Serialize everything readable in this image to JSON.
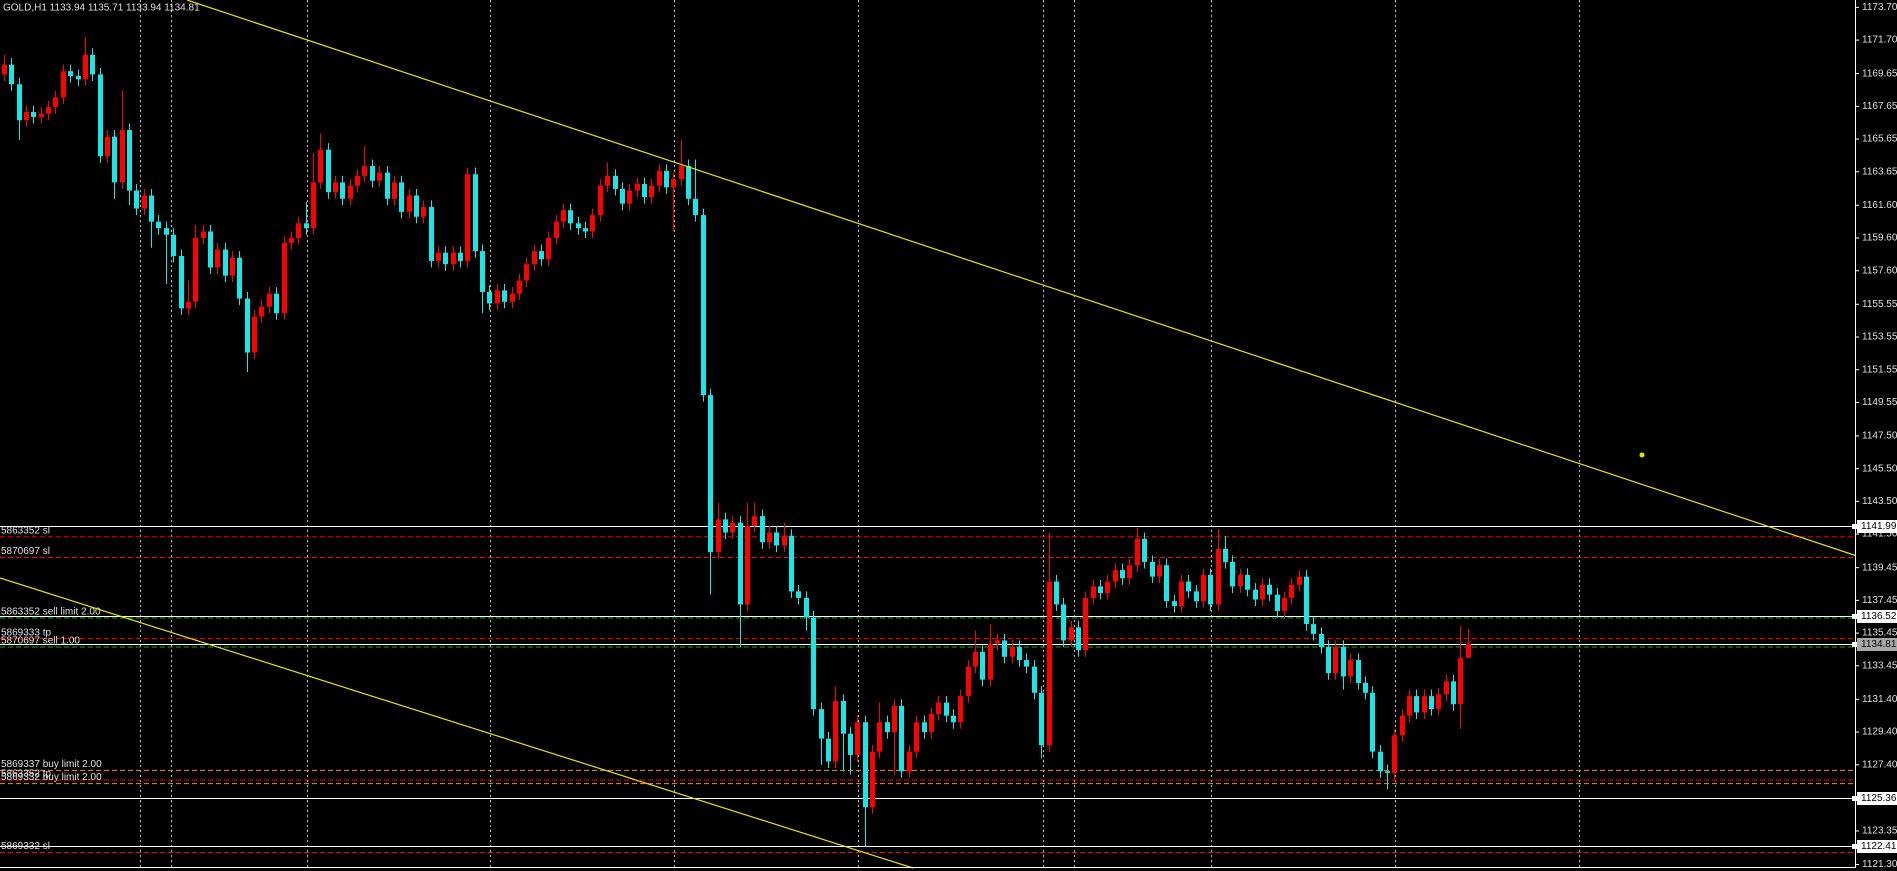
{
  "chart_data": {
    "type": "candlestick",
    "title": "GOLD,H1  1133.94 1135.71 1133.94 1134.81",
    "up_color": "#ff0000",
    "down_color": "#19e6e6",
    "grid": true,
    "ylim": [
      1121.15,
      1174.15
    ],
    "yticks": [
      {
        "value": 1173.7,
        "label": "1173.70"
      },
      {
        "value": 1171.7,
        "label": "1171.70"
      },
      1169.65,
      1167.65,
      1165.65,
      1163.65,
      {
        "value": 1161.6,
        "label": "1161.60"
      },
      {
        "value": 1159.6,
        "label": "1159.60"
      },
      {
        "value": 1157.6,
        "label": "1157.60"
      },
      1155.55,
      1153.55,
      1151.55,
      1149.55,
      {
        "value": 1147.5,
        "label": "1147.50"
      },
      {
        "value": 1145.5,
        "label": "1145.50"
      },
      {
        "value": 1143.5,
        "label": "1143.50"
      },
      {
        "value": 1141.5,
        "label": "1141.50"
      },
      1139.45,
      1137.45,
      1135.45,
      1133.45,
      {
        "value": 1131.4,
        "label": "1131.40"
      },
      {
        "value": 1129.4,
        "label": "1129.40"
      },
      {
        "value": 1127.4,
        "label": "1127.40"
      },
      1125.35,
      1123.35,
      {
        "value": 1121.3,
        "label": "1121.30"
      }
    ],
    "price_lines": [
      1141.99,
      1136.52,
      1134.81,
      1125.36,
      1122.41
    ],
    "orders": [
      {
        "label": "5863352 sl",
        "value": 1141.33,
        "color": "#ff0000"
      },
      {
        "label": "5870697 sl",
        "value": 1140.07,
        "color": "#ff0000"
      },
      {
        "label": "5863352 sell limit 2.00",
        "value": 1136.37,
        "color": "#00b400"
      },
      {
        "label": "5869333 tp",
        "value": 1135.11,
        "color": "#ff0000"
      },
      {
        "label": "5870697 sell 1.00",
        "value": 1134.6,
        "color": "#00b400"
      },
      {
        "label": "5869337 buy limit 2.00",
        "value": 1127.06,
        "color": "#ff8c00"
      },
      {
        "label": "5863352 tp",
        "value": 1126.47,
        "color": "#ff0000"
      },
      {
        "label": "5869332 buy limit 2.00",
        "value": 1126.25,
        "color": "#ff8c00"
      },
      {
        "label": "5869332 sl",
        "value": 1122.04,
        "color": "#ff0000"
      }
    ],
    "open": [
      1169.6,
      1170.2,
      1169.0,
      1166.8,
      1167.3,
      1167.0,
      1167.2,
      1167.6,
      1168.2,
      1169.8,
      1169.5,
      1169.3,
      1170.8,
      1169.6,
      1164.6,
      1165.8,
      1163.0,
      1166.2,
      1162.5,
      1161.4,
      1162.2,
      1160.6,
      1160.2,
      1159.8,
      1158.5,
      1155.3,
      1155.7,
      1159.6,
      1160.0,
      1157.8,
      1158.9,
      1157.3,
      1158.4,
      1155.9,
      1152.6,
      1154.8,
      1155.4,
      1156.2,
      1155.0,
      1159.3,
      1159.6,
      1160.5,
      1160.2,
      1163.0,
      1165.0,
      1162.4,
      1163.0,
      1162.0,
      1162.8,
      1163.4,
      1164.0,
      1163.1,
      1163.6,
      1162.0,
      1163.0,
      1161.2,
      1162.2,
      1160.9,
      1161.5,
      1158.2,
      1158.7,
      1158.0,
      1158.7,
      1158.2,
      1163.5,
      1158.8,
      1156.3,
      1155.6,
      1156.4,
      1155.7,
      1156.2,
      1157.0,
      1158.0,
      1158.8,
      1158.3,
      1159.6,
      1160.6,
      1161.3,
      1160.5,
      1160.2,
      1160.0,
      1161.0,
      1162.8,
      1163.4,
      1162.6,
      1161.7,
      1162.5,
      1162.9,
      1162.1,
      1162.8,
      1163.7,
      1162.7,
      1163.2,
      1164.0,
      1162.0,
      1161.0,
      1150.0,
      1140.4,
      1142.4,
      1141.6,
      1142.2,
      1137.2,
      1142.0,
      1142.6,
      1141.0,
      1141.6,
      1140.8,
      1141.4,
      1138.0,
      1137.6,
      1136.4,
      1130.8,
      1129.0,
      1127.6,
      1131.3,
      1129.3,
      1128.0,
      1130.0,
      1124.8,
      1128.2,
      1130.0,
      1129.4,
      1131.0,
      1127.0,
      1128.2,
      1130.0,
      1129.4,
      1130.5,
      1131.2,
      1130.4,
      1130.0,
      1131.6,
      1133.4,
      1134.3,
      1132.6,
      1134.8,
      1135.0,
      1134.0,
      1134.6,
      1133.8,
      1133.4,
      1131.8,
      1128.6,
      1138.6,
      1137.2,
      1135.0,
      1135.8,
      1134.4,
      1137.6,
      1138.3,
      1137.9,
      1138.6,
      1139.3,
      1138.8,
      1139.6,
      1141.2,
      1139.8,
      1138.9,
      1139.6,
      1137.4,
      1137.1,
      1138.6,
      1138.0,
      1137.4,
      1139.0,
      1137.2,
      1140.6,
      1139.8,
      1138.3,
      1139.0,
      1138.1,
      1137.5,
      1138.4,
      1137.8,
      1136.8,
      1137.6,
      1138.4,
      1138.9,
      1136.0,
      1135.4,
      1134.6,
      1133.0,
      1134.6,
      1132.8,
      1133.8,
      1132.4,
      1131.8,
      1128.2,
      1127.0,
      1126.9,
      1129.2,
      1130.4,
      1131.6,
      1130.6,
      1131.6,
      1130.8,
      1131.7,
      1132.5,
      1131.1,
      1133.94
    ],
    "high": [
      1170.8,
      1170.6,
      1169.4,
      1167.7,
      1167.7,
      1167.6,
      1168.0,
      1168.6,
      1170.2,
      1170.2,
      1169.9,
      1171.9,
      1171.2,
      1170.0,
      1166.2,
      1166.2,
      1168.6,
      1166.6,
      1162.9,
      1162.6,
      1162.6,
      1161.0,
      1160.6,
      1160.2,
      1158.9,
      1157.0,
      1160.4,
      1160.4,
      1160.4,
      1159.3,
      1159.3,
      1158.8,
      1158.8,
      1156.3,
      1155.2,
      1155.8,
      1156.6,
      1156.6,
      1159.7,
      1160.0,
      1160.9,
      1161.8,
      1164.8,
      1166.0,
      1165.4,
      1163.4,
      1163.4,
      1163.2,
      1163.8,
      1165.2,
      1164.4,
      1164.0,
      1164.0,
      1163.4,
      1163.4,
      1162.6,
      1162.6,
      1161.9,
      1161.9,
      1159.1,
      1159.1,
      1159.1,
      1159.1,
      1163.9,
      1163.9,
      1159.2,
      1156.7,
      1156.8,
      1156.8,
      1156.6,
      1157.4,
      1158.4,
      1159.2,
      1159.2,
      1160.0,
      1161.0,
      1161.7,
      1161.7,
      1160.9,
      1160.6,
      1161.4,
      1163.2,
      1164.2,
      1163.8,
      1163.0,
      1162.9,
      1163.3,
      1163.3,
      1163.2,
      1164.1,
      1164.1,
      1163.6,
      1165.6,
      1164.4,
      1164.4,
      1161.4,
      1150.4,
      1143.4,
      1142.8,
      1142.6,
      1142.6,
      1143.4,
      1143.4,
      1143.0,
      1142.0,
      1142.0,
      1142.2,
      1141.8,
      1138.4,
      1138.0,
      1136.8,
      1131.2,
      1129.4,
      1132.2,
      1131.7,
      1129.7,
      1130.4,
      1130.4,
      1128.6,
      1131.2,
      1130.4,
      1131.4,
      1131.4,
      1128.6,
      1130.4,
      1130.4,
      1130.9,
      1131.6,
      1131.6,
      1130.8,
      1132.0,
      1133.8,
      1135.6,
      1134.7,
      1136.0,
      1135.4,
      1135.4,
      1135.0,
      1135.0,
      1134.2,
      1133.8,
      1132.2,
      1141.6,
      1139.0,
      1137.6,
      1136.2,
      1136.2,
      1138.0,
      1138.7,
      1138.7,
      1139.0,
      1139.7,
      1139.7,
      1140.0,
      1141.9,
      1141.6,
      1140.2,
      1140.0,
      1140.0,
      1137.8,
      1139.0,
      1139.0,
      1138.4,
      1139.4,
      1139.4,
      1141.8,
      1141.4,
      1140.2,
      1139.4,
      1139.4,
      1138.5,
      1138.8,
      1138.8,
      1138.2,
      1138.0,
      1138.8,
      1139.3,
      1139.3,
      1136.4,
      1135.8,
      1135.0,
      1135.0,
      1135.0,
      1134.2,
      1134.2,
      1132.8,
      1132.2,
      1128.6,
      1127.4,
      1129.6,
      1130.8,
      1132.0,
      1132.0,
      1132.0,
      1132.0,
      1132.1,
      1132.9,
      1132.9,
      1135.9,
      1135.71
    ],
    "low": [
      1169.2,
      1168.6,
      1165.6,
      1166.4,
      1166.6,
      1166.6,
      1166.8,
      1167.2,
      1167.8,
      1169.1,
      1168.9,
      1168.9,
      1169.2,
      1164.2,
      1164.2,
      1162.0,
      1162.6,
      1161.6,
      1161.0,
      1161.0,
      1159.0,
      1159.8,
      1156.8,
      1158.1,
      1154.9,
      1154.9,
      1155.3,
      1159.2,
      1157.4,
      1157.4,
      1156.9,
      1156.9,
      1155.5,
      1151.4,
      1152.2,
      1154.4,
      1155.0,
      1154.6,
      1154.6,
      1158.9,
      1159.2,
      1159.8,
      1159.8,
      1162.6,
      1162.0,
      1162.0,
      1161.6,
      1161.6,
      1162.4,
      1163.0,
      1162.7,
      1162.7,
      1161.6,
      1161.6,
      1160.8,
      1160.8,
      1160.5,
      1160.5,
      1157.8,
      1157.8,
      1157.6,
      1157.6,
      1157.8,
      1157.8,
      1158.4,
      1155.0,
      1155.2,
      1155.2,
      1155.3,
      1155.3,
      1155.8,
      1156.6,
      1157.6,
      1157.9,
      1157.9,
      1159.2,
      1160.2,
      1160.1,
      1159.8,
      1159.6,
      1159.6,
      1160.6,
      1162.4,
      1162.2,
      1161.3,
      1161.3,
      1162.1,
      1161.7,
      1161.7,
      1162.4,
      1162.3,
      1160.0,
      1162.8,
      1161.6,
      1160.6,
      1149.6,
      1137.8,
      1140.0,
      1141.2,
      1141.2,
      1134.6,
      1136.8,
      1141.6,
      1140.6,
      1140.6,
      1140.4,
      1140.4,
      1137.6,
      1137.2,
      1135.6,
      1130.4,
      1127.4,
      1127.2,
      1127.2,
      1127.0,
      1126.8,
      1127.6,
      1122.4,
      1124.4,
      1127.8,
      1129.0,
      1126.8,
      1126.6,
      1126.6,
      1127.8,
      1129.0,
      1129.0,
      1130.1,
      1130.0,
      1129.6,
      1129.6,
      1131.2,
      1133.0,
      1132.2,
      1132.2,
      1134.4,
      1133.6,
      1133.6,
      1133.4,
      1133.0,
      1131.4,
      1127.8,
      1128.2,
      1136.8,
      1134.6,
      1134.6,
      1134.0,
      1134.0,
      1137.2,
      1137.5,
      1137.5,
      1138.2,
      1138.4,
      1138.4,
      1139.2,
      1139.4,
      1138.5,
      1138.5,
      1137.0,
      1136.7,
      1136.7,
      1137.6,
      1137.0,
      1137.0,
      1136.8,
      1136.8,
      1139.4,
      1137.9,
      1137.9,
      1137.7,
      1137.1,
      1137.1,
      1137.4,
      1136.4,
      1136.4,
      1137.2,
      1138.0,
      1135.6,
      1135.0,
      1134.2,
      1132.6,
      1132.6,
      1132.0,
      1132.4,
      1132.0,
      1131.4,
      1127.8,
      1126.6,
      1125.9,
      1126.5,
      1128.8,
      1130.0,
      1130.2,
      1130.2,
      1130.4,
      1130.4,
      1131.3,
      1130.7,
      1129.6,
      1133.94
    ],
    "close": [
      1170.2,
      1169.0,
      1166.8,
      1167.3,
      1167.0,
      1167.2,
      1167.6,
      1168.2,
      1169.8,
      1169.5,
      1169.3,
      1170.8,
      1169.6,
      1164.6,
      1165.8,
      1163.0,
      1166.2,
      1162.5,
      1161.4,
      1162.2,
      1160.6,
      1160.2,
      1159.8,
      1158.5,
      1155.3,
      1155.7,
      1159.6,
      1160.0,
      1157.8,
      1158.9,
      1157.3,
      1158.4,
      1155.9,
      1152.6,
      1154.8,
      1155.4,
      1156.2,
      1155.0,
      1159.3,
      1159.6,
      1160.5,
      1160.2,
      1163.0,
      1165.0,
      1162.4,
      1163.0,
      1162.0,
      1162.8,
      1163.4,
      1164.0,
      1163.1,
      1163.6,
      1162.0,
      1163.0,
      1161.2,
      1162.2,
      1160.9,
      1161.5,
      1158.2,
      1158.7,
      1158.0,
      1158.7,
      1158.2,
      1163.5,
      1158.8,
      1156.3,
      1155.6,
      1156.4,
      1155.7,
      1156.2,
      1157.0,
      1158.0,
      1158.8,
      1158.3,
      1159.6,
      1160.6,
      1161.3,
      1160.5,
      1160.2,
      1160.0,
      1161.0,
      1162.8,
      1163.4,
      1162.6,
      1161.7,
      1162.5,
      1162.9,
      1162.1,
      1162.8,
      1163.7,
      1162.7,
      1163.2,
      1164.0,
      1162.0,
      1161.0,
      1150.0,
      1140.4,
      1142.4,
      1141.6,
      1142.2,
      1137.2,
      1142.0,
      1142.6,
      1141.0,
      1141.6,
      1140.8,
      1141.4,
      1138.0,
      1137.6,
      1136.4,
      1130.8,
      1129.0,
      1127.6,
      1131.3,
      1129.3,
      1128.0,
      1130.0,
      1124.8,
      1128.2,
      1130.0,
      1129.4,
      1131.0,
      1127.0,
      1128.2,
      1130.0,
      1129.4,
      1130.5,
      1131.2,
      1130.4,
      1130.0,
      1131.6,
      1133.4,
      1134.3,
      1132.6,
      1134.8,
      1135.0,
      1134.0,
      1134.6,
      1133.8,
      1133.4,
      1131.8,
      1128.6,
      1138.6,
      1137.2,
      1135.0,
      1135.8,
      1134.4,
      1137.6,
      1138.3,
      1137.9,
      1138.6,
      1139.3,
      1138.8,
      1139.6,
      1141.2,
      1139.8,
      1138.9,
      1139.6,
      1137.4,
      1137.1,
      1138.6,
      1138.0,
      1137.4,
      1139.0,
      1137.2,
      1140.6,
      1139.8,
      1138.3,
      1139.0,
      1138.1,
      1137.5,
      1138.4,
      1137.8,
      1136.8,
      1137.6,
      1138.4,
      1138.9,
      1136.0,
      1135.4,
      1134.6,
      1133.0,
      1134.6,
      1132.8,
      1133.8,
      1132.4,
      1131.8,
      1128.2,
      1127.0,
      1126.9,
      1129.2,
      1130.4,
      1131.6,
      1130.6,
      1131.6,
      1130.8,
      1131.7,
      1132.5,
      1131.1,
      1133.94,
      1134.81
    ]
  }
}
